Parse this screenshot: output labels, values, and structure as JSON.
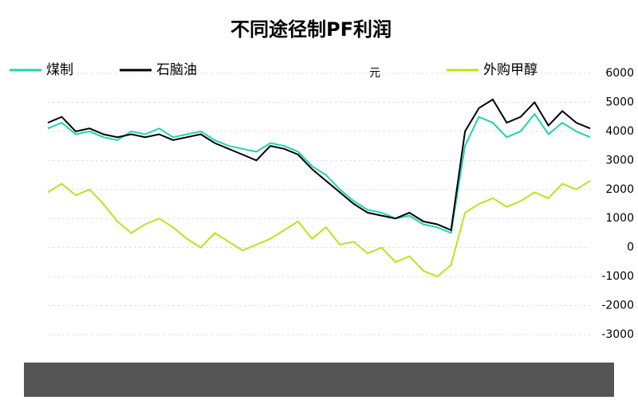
{
  "chart_data": {
    "type": "line",
    "title": "不同途径制PF利润",
    "y_unit": "元",
    "series": [
      {
        "name": "煤制",
        "color": "#1fd3b0",
        "values": [
          4100,
          4300,
          3900,
          4000,
          3800,
          3700,
          4000,
          3900,
          4100,
          3800,
          3900,
          4000,
          3700,
          3500,
          3400,
          3300,
          3600,
          3500,
          3300,
          2800,
          2500,
          2000,
          1600,
          1300,
          1200,
          1000,
          1100,
          800,
          700,
          500,
          3500,
          4500,
          4300,
          3800,
          4000,
          4600,
          3900,
          4300,
          4000,
          3800
        ]
      },
      {
        "name": "石脑油",
        "color": "#000000",
        "values": [
          4300,
          4500,
          4000,
          4100,
          3900,
          3800,
          3900,
          3800,
          3900,
          3700,
          3800,
          3900,
          3600,
          3400,
          3200,
          3000,
          3500,
          3400,
          3200,
          2700,
          2300,
          1900,
          1500,
          1200,
          1100,
          1000,
          1200,
          900,
          800,
          600,
          4000,
          4800,
          5100,
          4300,
          4500,
          5000,
          4200,
          4700,
          4300,
          4100
        ]
      },
      {
        "name": "外购甲醇",
        "color": "#b5e61d",
        "values": [
          1900,
          2200,
          1800,
          2000,
          1500,
          900,
          500,
          800,
          1000,
          700,
          300,
          0,
          500,
          200,
          -100,
          100,
          300,
          600,
          900,
          300,
          700,
          100,
          200,
          -200,
          0,
          -500,
          -300,
          -800,
          -1000,
          -600,
          1200,
          1500,
          1700,
          1400,
          1600,
          1900,
          1700,
          2200,
          2000,
          2300
        ]
      }
    ],
    "ylim": [
      -3000,
      6000
    ],
    "yticks": [
      -3000,
      -2000,
      -1000,
      0,
      1000,
      2000,
      3000,
      4000,
      5000,
      6000
    ],
    "grid": true
  }
}
